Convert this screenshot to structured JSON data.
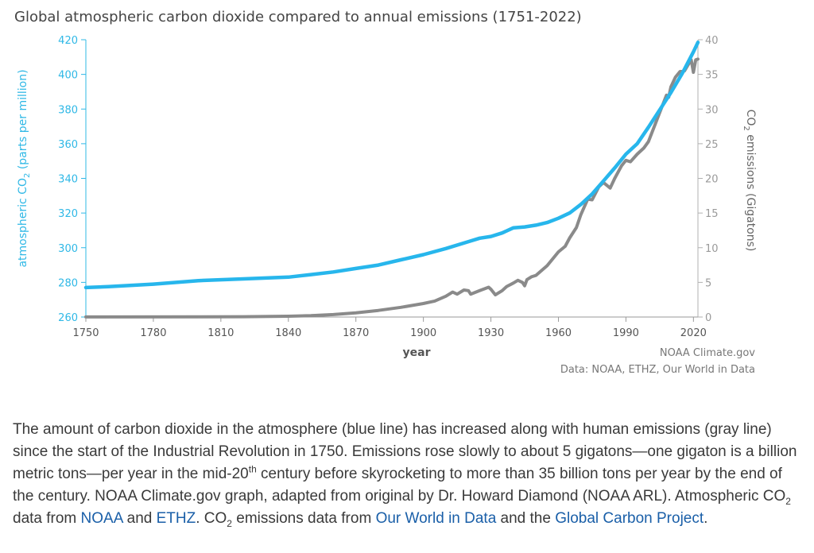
{
  "chart_data": {
    "type": "line",
    "title": "Global atmospheric carbon dioxide compared to annual emissions (1751-2022)",
    "xlabel": "year",
    "ylabel_left": {
      "main": "atmospheric CO",
      "sub": "2",
      "rest": " (parts per million)"
    },
    "ylabel_right": {
      "main": "CO",
      "sub": "2",
      "rest": " emissions (Gigatons)"
    },
    "xlim": [
      1750,
      2022
    ],
    "xticks": [
      1750,
      1780,
      1810,
      1840,
      1870,
      1900,
      1930,
      1960,
      1990,
      2020
    ],
    "ylim_left": [
      260,
      420
    ],
    "yticks_left": [
      260,
      280,
      300,
      320,
      340,
      360,
      380,
      400,
      420
    ],
    "ylim_right": [
      0,
      40
    ],
    "yticks_right": [
      0,
      5,
      10,
      15,
      20,
      25,
      30,
      35,
      40
    ],
    "grid": false,
    "series": [
      {
        "name": "Atmospheric CO2 (ppm)",
        "axis": "left",
        "color": "#27b6ec",
        "x": [
          1750,
          1760,
          1780,
          1800,
          1820,
          1840,
          1850,
          1860,
          1870,
          1880,
          1890,
          1900,
          1910,
          1920,
          1925,
          1930,
          1935,
          1940,
          1945,
          1950,
          1955,
          1960,
          1965,
          1970,
          1975,
          1980,
          1985,
          1990,
          1995,
          2000,
          2005,
          2010,
          2015,
          2020,
          2022
        ],
        "values": [
          277,
          277.5,
          279,
          281,
          282,
          283,
          284.5,
          286,
          288,
          290,
          293,
          296,
          299.5,
          303.5,
          305.5,
          306.5,
          308.5,
          311.5,
          312,
          313,
          314.5,
          317,
          320,
          325,
          331,
          338.5,
          346,
          354,
          360,
          369.5,
          379.5,
          389.5,
          400.5,
          413,
          418.5
        ]
      },
      {
        "name": "CO2 emissions (Gigatons)",
        "axis": "right",
        "color": "#8a8a8a",
        "x": [
          1750,
          1800,
          1820,
          1840,
          1850,
          1860,
          1870,
          1880,
          1890,
          1900,
          1905,
          1910,
          1913,
          1915,
          1918,
          1920,
          1921,
          1925,
          1929,
          1930,
          1932,
          1935,
          1937,
          1940,
          1942,
          1944,
          1945,
          1946,
          1948,
          1950,
          1955,
          1960,
          1963,
          1965,
          1968,
          1970,
          1973,
          1975,
          1978,
          1980,
          1983,
          1985,
          1988,
          1990,
          1992,
          1995,
          1998,
          2000,
          2003,
          2005,
          2008,
          2009,
          2010,
          2012,
          2014,
          2016,
          2018,
          2019,
          2020,
          2021,
          2022
        ],
        "values": [
          0.01,
          0.03,
          0.05,
          0.12,
          0.2,
          0.35,
          0.6,
          0.95,
          1.4,
          1.95,
          2.3,
          3.0,
          3.6,
          3.3,
          3.9,
          3.8,
          3.3,
          3.8,
          4.3,
          4.0,
          3.2,
          3.8,
          4.4,
          4.9,
          5.3,
          5.0,
          4.5,
          5.4,
          5.8,
          6.0,
          7.4,
          9.4,
          10.2,
          11.4,
          12.9,
          14.8,
          17.0,
          16.9,
          18.8,
          19.4,
          18.6,
          20.0,
          21.8,
          22.6,
          22.4,
          23.5,
          24.4,
          25.3,
          27.8,
          29.5,
          32.0,
          31.7,
          33.2,
          34.6,
          35.4,
          35.5,
          36.6,
          37.1,
          35.3,
          37.1,
          37.2
        ]
      }
    ]
  },
  "credits": {
    "line1": "NOAA Climate.gov",
    "line2": "Data: NOAA, ETHZ, Our World in Data"
  },
  "caption": {
    "p1": "The amount of carbon dioxide in the atmosphere (blue line) has increased along with human emissions (gray line) since the start of the Industrial Revolution in 1750. Emissions rose slowly to about 5 gigatons—one gigaton is a billion metric tons—per year in the mid-20",
    "sup_th": "th",
    "p2": " century before skyrocketing to more than 35 billion tons per year by the end of the century. NOAA Climate.gov graph, adapted from original by Dr. Howard Diamond (NOAA ARL). Atmospheric CO",
    "sub1": "2",
    "p3": " data from ",
    "link_noaa": "NOAA",
    "p4": " and ",
    "link_ethz": "ETHZ",
    "p5": ". CO",
    "sub2": "2",
    "p6": " emissions data from ",
    "link_owid": "Our World in Data",
    "p7": " and the ",
    "link_gcp": "Global Carbon Project",
    "p8": "."
  }
}
